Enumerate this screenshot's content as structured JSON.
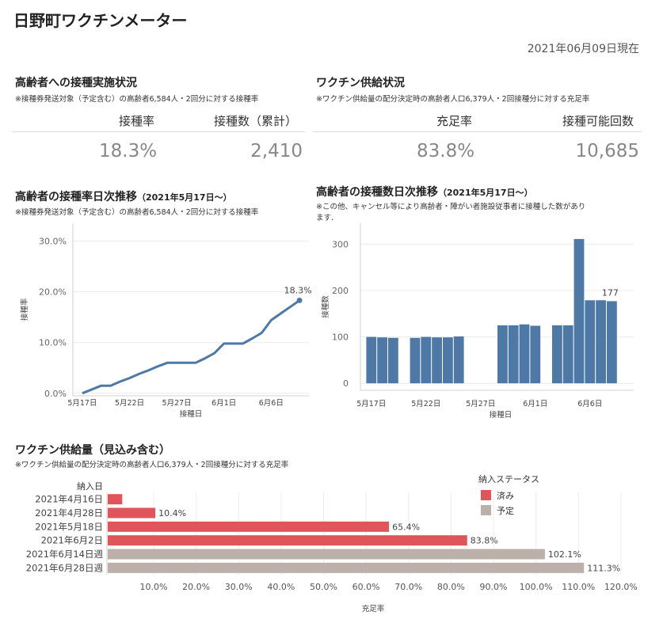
{
  "header": {
    "title": "日野町ワクチンメーター",
    "as_of": "2021年06月09日現在"
  },
  "kpi_left": {
    "title": "高齢者への接種実施状況",
    "note": "※接種券発送対象（予定含む）の高齢者6,584人・2回分に対する接種率",
    "col1_label": "接種率",
    "col2_label": "接種数（累計）",
    "col1_value": "18.3%",
    "col2_value": "2,410"
  },
  "kpi_right": {
    "title": "ワクチン供給状況",
    "note": "※ワクチン供給量の配分決定時の高齢者人口6,379人・2回接種分に対する充足率",
    "col1_label": "充足率",
    "col2_label": "接種可能回数",
    "col1_value": "83.8%",
    "col2_value": "10,685"
  },
  "line_panel": {
    "title": "高齢者の接種率日次推移",
    "title_suffix": "（2021年5月17日〜）",
    "note": "※接種券発送対象（予定含む）の高齢者6,584人・2回分に対する接種率"
  },
  "bar_panel": {
    "title": "高齢者の接種数日次推移",
    "title_suffix": "（2021年5月17日〜）",
    "note_line1": "※この他、キャンセル等により高齢者・障がい者施設従事者に接種した数があり",
    "note_line2": "ます."
  },
  "supply_panel": {
    "title": "ワクチン供給量（見込み含む）",
    "note": "※ワクチン供給量の配分決定時の高齢者人口6,379人・2回接種分に対する充足率",
    "legend_title": "納入ステータス",
    "legend": [
      {
        "label": "済み",
        "color": "#e0555a"
      },
      {
        "label": "予定",
        "color": "#bcb0ab"
      }
    ]
  },
  "colors": {
    "line": "#4e79a7",
    "bar": "#4e79a7",
    "done": "#e0555a",
    "planned": "#bcb0ab",
    "grid": "#ececec"
  },
  "chart_data": [
    {
      "id": "line",
      "type": "line",
      "ylabel": "接種率",
      "xlabel": "接種日",
      "ylim": [
        -0.005,
        0.335
      ],
      "yticks": [
        0,
        0.1,
        0.2,
        0.3
      ],
      "ytick_labels": [
        "0.0%",
        "10.0%",
        "20.0%",
        "30.0%"
      ],
      "xticks": [
        "5月17日",
        "5月22日",
        "5月27日",
        "6月1日",
        "6月6日"
      ],
      "x": [
        "2021-05-17",
        "2021-05-19",
        "2021-05-20",
        "2021-05-21",
        "2021-05-22",
        "2021-05-23",
        "2021-05-24",
        "2021-05-25",
        "2021-05-26",
        "2021-05-27",
        "2021-05-28",
        "2021-05-29",
        "2021-05-30",
        "2021-05-31",
        "2021-06-01",
        "2021-06-02",
        "2021-06-03",
        "2021-06-04",
        "2021-06-05",
        "2021-06-06",
        "2021-06-07",
        "2021-06-08",
        "2021-06-09"
      ],
      "y": [
        0.0,
        0.015,
        0.015,
        0.023,
        0.03,
        0.038,
        0.045,
        0.053,
        0.06,
        0.06,
        0.06,
        0.06,
        0.069,
        0.079,
        0.098,
        0.098,
        0.098,
        0.108,
        0.119,
        0.144,
        0.157,
        0.17,
        0.183
      ],
      "annotation": {
        "x": "2021-06-09",
        "y": 0.183,
        "label": "18.3%"
      }
    },
    {
      "id": "bars",
      "type": "bar",
      "ylabel": "接種数",
      "xlabel": "接種日",
      "ylim": [
        -15,
        345
      ],
      "yticks": [
        0,
        100,
        200,
        300
      ],
      "xticks": [
        "5月17日",
        "5月22日",
        "5月27日",
        "6月1日",
        "6月6日"
      ],
      "x": [
        "2021-05-17",
        "2021-05-18",
        "2021-05-19",
        "2021-05-21",
        "2021-05-22",
        "2021-05-23",
        "2021-05-24",
        "2021-05-25",
        "2021-05-29",
        "2021-05-30",
        "2021-05-31",
        "2021-06-01",
        "2021-06-03",
        "2021-06-04",
        "2021-06-05",
        "2021-06-06",
        "2021-06-07",
        "2021-06-08"
      ],
      "values": [
        100,
        99,
        98,
        98,
        100,
        99,
        99,
        101,
        125,
        125,
        127,
        124,
        125,
        125,
        311,
        179,
        179,
        177
      ],
      "annotation": {
        "x": "2021-06-08",
        "value": 177,
        "label": "177"
      }
    },
    {
      "id": "supply",
      "type": "bar",
      "orientation": "horizontal",
      "row_header": "納入日",
      "xlabel": "充足率",
      "xlim": [
        -0.01,
        1.23
      ],
      "xticks": [
        0.1,
        0.2,
        0.3,
        0.4,
        0.5,
        0.6,
        0.7,
        0.8,
        0.9,
        1.0,
        1.1,
        1.2
      ],
      "xtick_labels": [
        "10.0%",
        "20.0%",
        "30.0%",
        "40.0%",
        "50.0%",
        "60.0%",
        "70.0%",
        "80.0%",
        "90.0%",
        "100.0%",
        "110.0%",
        "120.0%"
      ],
      "categories": [
        "2021年4月16日",
        "2021年4月28日",
        "2021年5月18日",
        "2021年6月2日",
        "2021年6月14日週",
        "2021年6月28日週"
      ],
      "values": [
        0.026,
        0.104,
        0.654,
        0.838,
        1.021,
        1.113
      ],
      "labels": [
        "",
        "10.4%",
        "65.4%",
        "83.8%",
        "102.1%",
        "111.3%"
      ],
      "status": [
        "済み",
        "済み",
        "済み",
        "済み",
        "予定",
        "予定"
      ]
    }
  ]
}
